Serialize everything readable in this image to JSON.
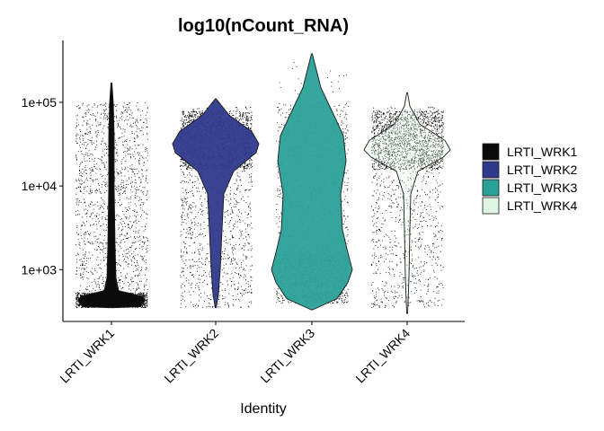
{
  "chart_data": {
    "type": "violin",
    "title": "log10(nCount_RNA)",
    "xlabel": "Identity",
    "ylabel": "",
    "categories": [
      "LRTI_WRK1",
      "LRTI_WRK2",
      "LRTI_WRK3",
      "LRTI_WRK4"
    ],
    "y_scale": "log10",
    "ylim": [
      240,
      550000
    ],
    "y_ticks": [
      {
        "value": 1000,
        "label": "1e+03"
      },
      {
        "value": 10000,
        "label": "1e+04"
      },
      {
        "value": 100000,
        "label": "1e+05"
      }
    ],
    "grid": false,
    "legend": {
      "position": "right",
      "entries": [
        {
          "label": "LRTI_WRK1",
          "color": "#0b0b0b"
        },
        {
          "label": "LRTI_WRK2",
          "color": "#303a8c"
        },
        {
          "label": "LRTI_WRK3",
          "color": "#2aa198"
        },
        {
          "label": "LRTI_WRK4",
          "color": "#dff5e4"
        }
      ]
    },
    "series": [
      {
        "category": "LRTI_WRK1",
        "color": "#0b0b0b",
        "y_min": 350,
        "y_max": 170000,
        "mode_value": 430,
        "point_range": [
          350,
          100000
        ]
      },
      {
        "category": "LRTI_WRK2",
        "color": "#303a8c",
        "y_min": 350,
        "y_max": 110000,
        "mode_value": 30000,
        "point_range": [
          350,
          100000
        ]
      },
      {
        "category": "LRTI_WRK3",
        "color": "#2aa198",
        "y_min": 350,
        "y_max": 380000,
        "mode_value": 1000,
        "point_range": [
          350,
          300000
        ]
      },
      {
        "category": "LRTI_WRK4",
        "color": "#dff5e4",
        "y_min": 300,
        "y_max": 130000,
        "mode_value": 27000,
        "point_range": [
          350,
          100000
        ]
      }
    ]
  }
}
